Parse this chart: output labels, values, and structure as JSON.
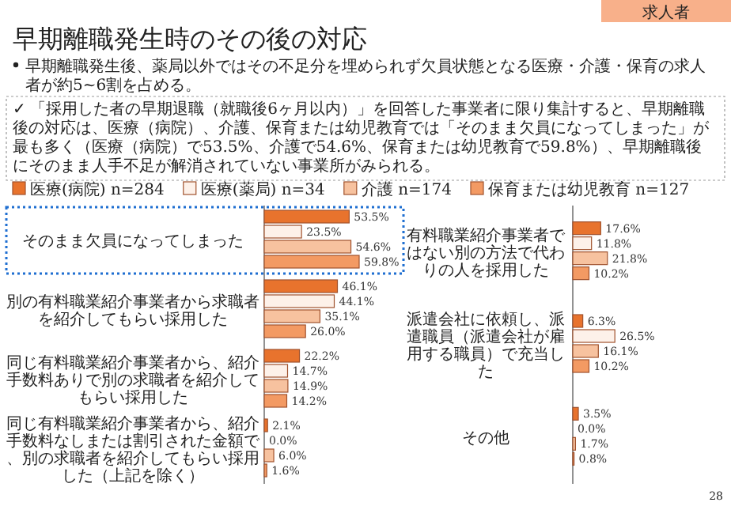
{
  "chart_data": [
    {
      "type": "bar",
      "orientation": "horizontal",
      "legend": "top",
      "title": "早期離職発生時のその後の対応",
      "subtitle": "早期離職発生後、薬局以外ではその不足分を埋められず欠員状態となる医療・介護・保育の求人者が約5~6割を占める。",
      "annotations": [
        "求人者",
        "✓ 「採用した者の早期退職（就職後6ヶ月以内）」を回答した事業者に限り集計すると、早期離職後の対応は、医療（病院）、介護、保育または幼児教育では「そのまま欠員になってしまった」が最も多く（医療（病院）で53.5%、介護で54.6%、保育または幼児教育で59.8%）、早期離職後にそのまま人手不足が解消されていない事業所がみられる。",
        "28"
      ],
      "categories": [
        "そのまま欠員になってしまった",
        "別の有料職業紹介事業者から求職者を紹介してもらい採用した",
        "同じ有料職業紹介事業者から、紹介手数料ありで別の求職者を紹介してもらい採用した",
        "同じ有料職業紹介事業者から、紹介手数料なしまたは割引された金額で、別の求職者を紹介してもらい採用した（上記を除く）"
      ],
      "series": [
        {
          "name": "医療(病院) n=284",
          "color": "#e8732d",
          "values": [
            53.5,
            46.1,
            22.2,
            2.1
          ],
          "value_labels": [
            "53.5%",
            "46.1%",
            "22.2%",
            "2.1%"
          ]
        },
        {
          "name": "医療(薬局) n=34",
          "color": "#fdf1e9",
          "values": [
            23.5,
            44.1,
            14.7,
            0.0
          ],
          "value_labels": [
            "23.5%",
            "44.1%",
            "14.7%",
            "0.0%"
          ]
        },
        {
          "name": "介護 n=174",
          "color": "#f7c29f",
          "values": [
            54.6,
            35.1,
            14.9,
            6.0
          ],
          "value_labels": [
            "54.6%",
            "35.1%",
            "14.9%",
            "6.0%"
          ]
        },
        {
          "name": "保育または幼児教育 n=127",
          "color": "#f39a63",
          "values": [
            59.8,
            26.0,
            14.2,
            1.6
          ],
          "value_labels": [
            "59.8%",
            "26.0%",
            "14.2%",
            "1.6%"
          ]
        }
      ]
    },
    {
      "type": "bar",
      "orientation": "horizontal",
      "categories": [
        "有料職業紹介事業者ではない別の方法で代わりの人を採用した",
        "派遣会社に依頼し、派遣職員（派遣会社が雇用する職員）で充当した",
        "その他"
      ],
      "series": [
        {
          "color": "#e8732d",
          "values": [
            17.6,
            6.3,
            3.5
          ],
          "value_labels": [
            "17.6%",
            "6.3%",
            "3.5%"
          ]
        },
        {
          "color": "#fdf1e9",
          "values": [
            11.8,
            26.5,
            0.0
          ],
          "value_labels": [
            "11.8%",
            "26.5%",
            "0.0%"
          ]
        },
        {
          "color": "#f7c29f",
          "values": [
            21.8,
            16.1,
            1.7
          ],
          "value_labels": [
            "21.8%",
            "16.1%",
            "1.7%"
          ]
        },
        {
          "color": "#f39a63",
          "values": [
            10.2,
            10.2,
            0.8
          ],
          "value_labels": [
            "10.2%",
            "10.2%",
            "0.8%"
          ]
        }
      ]
    }
  ]
}
